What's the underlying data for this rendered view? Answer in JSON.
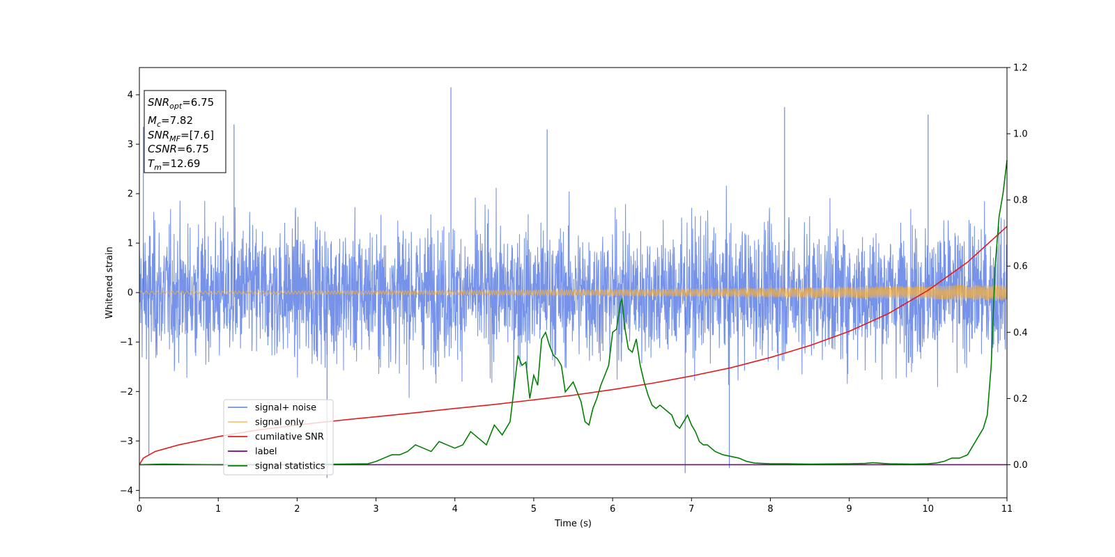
{
  "chart_data": {
    "type": "line",
    "title": "",
    "xlabel": "Time (s)",
    "ylabel": "Whitened strain",
    "y2label": "",
    "xlim": [
      0,
      11
    ],
    "ylim": [
      -4.15,
      4.55
    ],
    "y2lim": [
      -0.1,
      1.2
    ],
    "xticks": [
      "0",
      "1",
      "2",
      "3",
      "4",
      "5",
      "6",
      "7",
      "8",
      "9",
      "10",
      "11"
    ],
    "yticks": [
      "−4",
      "−3",
      "−2",
      "−1",
      "0",
      "1",
      "2",
      "3",
      "4"
    ],
    "y2ticks": [
      "0.0",
      "0.2",
      "0.4",
      "0.6",
      "0.8",
      "1.0",
      "1.2"
    ],
    "grid": false,
    "legend_position": "lower-left",
    "info_box": {
      "lines": [
        {
          "var": "SNR",
          "sub": "opt",
          "value": "=6.75"
        },
        {
          "var": "M",
          "sub": "c",
          "value": "=7.82"
        },
        {
          "var": "SNR",
          "sub": "MF",
          "value": "=[7.6]"
        },
        {
          "var": "CSNR",
          "sub": "",
          "value": "=6.75"
        },
        {
          "var": "T",
          "sub": "m",
          "value": "=12.69"
        }
      ]
    },
    "series": [
      {
        "name": "signal+ noise",
        "color": "#4169e1",
        "axis": "left",
        "kind": "noise",
        "envelope_min": -2.9,
        "envelope_max": 2.6,
        "spikes": [
          {
            "x": 3.95,
            "y": 4.15
          },
          {
            "x": 8.18,
            "y": 3.75
          },
          {
            "x": 1.2,
            "y": 3.4
          },
          {
            "x": 6.92,
            "y": -3.65
          },
          {
            "x": 2.38,
            "y": -3.75
          },
          {
            "x": 7.48,
            "y": -3.55
          },
          {
            "x": 10.0,
            "y": 3.6
          },
          {
            "x": 5.17,
            "y": 3.3
          },
          {
            "x": 0.05,
            "y": 3.35
          },
          {
            "x": 0.12,
            "y": -3.3
          }
        ]
      },
      {
        "name": "signal only",
        "color": "#f5b041",
        "axis": "left",
        "kind": "chirp",
        "amplitude_start": 0.03,
        "amplitude_end": 0.16
      },
      {
        "name": "cumilative SNR",
        "color": "#e41a1c",
        "axis": "right",
        "x": [
          0,
          0.05,
          0.2,
          0.5,
          1,
          1.5,
          2,
          2.5,
          3,
          3.5,
          4,
          4.5,
          5,
          5.5,
          6,
          6.5,
          7,
          7.5,
          8,
          8.5,
          9,
          9.5,
          10,
          10.5,
          11
        ],
        "y": [
          0.0,
          0.02,
          0.04,
          0.06,
          0.085,
          0.105,
          0.12,
          0.133,
          0.145,
          0.157,
          0.17,
          0.182,
          0.196,
          0.21,
          0.227,
          0.246,
          0.268,
          0.293,
          0.324,
          0.36,
          0.403,
          0.457,
          0.527,
          0.612,
          0.72
        ]
      },
      {
        "name": "label",
        "color": "#800080",
        "axis": "right",
        "x": [
          0,
          11
        ],
        "y": [
          0,
          0
        ]
      },
      {
        "name": "signal statistics",
        "color": "#008000",
        "axis": "right",
        "x": [
          0,
          0.3,
          0.6,
          1,
          2,
          2.9,
          3.0,
          3.1,
          3.2,
          3.3,
          3.4,
          3.5,
          3.6,
          3.7,
          3.8,
          3.9,
          4.0,
          4.1,
          4.2,
          4.3,
          4.4,
          4.5,
          4.6,
          4.7,
          4.8,
          4.85,
          4.9,
          4.95,
          5.0,
          5.05,
          5.1,
          5.15,
          5.2,
          5.25,
          5.3,
          5.35,
          5.4,
          5.5,
          5.6,
          5.65,
          5.7,
          5.75,
          5.8,
          5.85,
          5.9,
          5.95,
          6.0,
          6.05,
          6.1,
          6.12,
          6.15,
          6.2,
          6.25,
          6.3,
          6.35,
          6.4,
          6.45,
          6.5,
          6.55,
          6.6,
          6.65,
          6.7,
          6.75,
          6.8,
          6.85,
          6.9,
          6.95,
          7.0,
          7.05,
          7.1,
          7.15,
          7.2,
          7.3,
          7.4,
          7.5,
          7.6,
          7.7,
          7.8,
          8.0,
          8.2,
          8.5,
          9.0,
          9.2,
          9.3,
          9.5,
          9.8,
          10.0,
          10.1,
          10.2,
          10.3,
          10.4,
          10.5,
          10.55,
          10.6,
          10.65,
          10.7,
          10.75,
          10.8,
          10.85,
          10.9,
          10.95,
          11.0
        ],
        "y": [
          0.0,
          0.002,
          0.001,
          0.0,
          0.0,
          0.003,
          0.01,
          0.02,
          0.03,
          0.03,
          0.04,
          0.06,
          0.05,
          0.04,
          0.07,
          0.06,
          0.05,
          0.06,
          0.1,
          0.08,
          0.06,
          0.12,
          0.09,
          0.13,
          0.33,
          0.3,
          0.31,
          0.2,
          0.27,
          0.24,
          0.38,
          0.4,
          0.36,
          0.33,
          0.32,
          0.3,
          0.22,
          0.25,
          0.19,
          0.13,
          0.12,
          0.17,
          0.2,
          0.24,
          0.27,
          0.3,
          0.4,
          0.41,
          0.49,
          0.5,
          0.42,
          0.35,
          0.34,
          0.38,
          0.3,
          0.25,
          0.21,
          0.18,
          0.17,
          0.18,
          0.17,
          0.16,
          0.15,
          0.12,
          0.11,
          0.13,
          0.15,
          0.12,
          0.1,
          0.07,
          0.06,
          0.06,
          0.04,
          0.03,
          0.025,
          0.02,
          0.01,
          0.005,
          0.003,
          0.003,
          0.002,
          0.003,
          0.004,
          0.006,
          0.003,
          0.002,
          0.003,
          0.005,
          0.01,
          0.02,
          0.02,
          0.03,
          0.05,
          0.07,
          0.09,
          0.11,
          0.15,
          0.3,
          0.6,
          0.75,
          0.82,
          0.92
        ]
      }
    ]
  }
}
